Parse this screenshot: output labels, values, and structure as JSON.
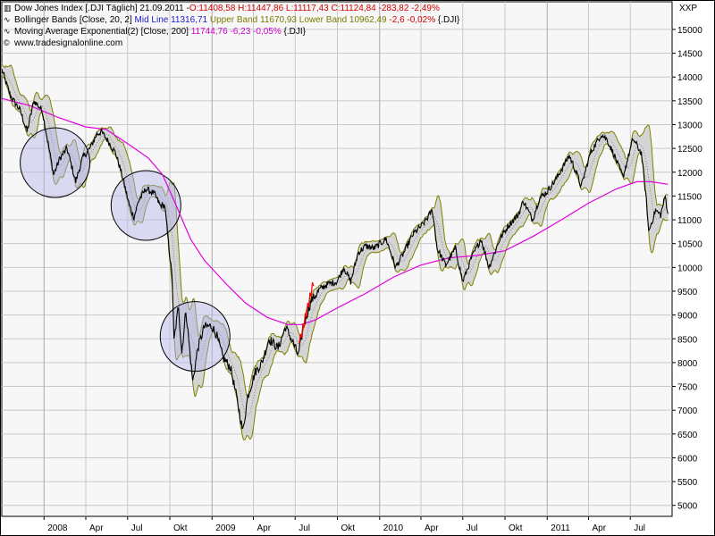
{
  "legend": {
    "line1": {
      "icon": "candlestick-icon",
      "label": "Dow Jones Index [.DJI  Täglich] 21.09.2011 -",
      "ohlc": "O:11408,58 H:11447,86 L:11117,43 C:11124,84 -283,82 -2,49%"
    },
    "line2": {
      "icon": "indicator-icon",
      "label": "Bollinger Bands [Close, 20, 2]",
      "mid": "Mid Line 11316,71",
      "upper": "Upper Band 11670,93",
      "lower": "Lower Band 10962,49",
      "change": "-2,6 -0,02%",
      "symbol": "{.DJI}"
    },
    "line3": {
      "icon": "indicator-icon",
      "label": "Moving Average Exponential(2) [Close, 200]",
      "value": "11744,76 -6,23 -0,05%",
      "symbol": "{.DJI}"
    },
    "line4": {
      "icon": "copyright-icon",
      "label": "www.tradesignalonline.com"
    }
  },
  "corner_label": "XXP",
  "colors": {
    "price": "#000000",
    "bands": "#808000",
    "band_fill": "#d4d4d4",
    "mid": "#555555",
    "ema": "#e000e0",
    "grid": "#c8c8c8",
    "circle_fill": "rgba(180,180,235,0.45)",
    "circle_stroke": "#000000",
    "red_segment": "#ff0000"
  },
  "chart_data": {
    "type": "line",
    "title": "Dow Jones Index [.DJI  Täglich] 21.09.2011",
    "y_axis": {
      "side": "right",
      "min": 5000,
      "max": 15000,
      "ticks": [
        "15000",
        "14500",
        "14000",
        "13500",
        "13000",
        "12500",
        "12000",
        "11500",
        "11000",
        "10500",
        "10000",
        "9500",
        "9000",
        "8500",
        "8000",
        "7500",
        "7000",
        "6500",
        "6000",
        "5500",
        "5000"
      ]
    },
    "x_axis": {
      "start": "2007-10-01",
      "end": "2011-09-30",
      "ticks": [
        {
          "label": "2008",
          "date": "2008-01-01",
          "major": true
        },
        {
          "label": "Apr",
          "date": "2008-04-01",
          "major": false
        },
        {
          "label": "Jul",
          "date": "2008-07-01",
          "major": false
        },
        {
          "label": "Okt",
          "date": "2008-10-01",
          "major": false
        },
        {
          "label": "2009",
          "date": "2009-01-01",
          "major": true
        },
        {
          "label": "Apr",
          "date": "2009-04-01",
          "major": false
        },
        {
          "label": "Jul",
          "date": "2009-07-01",
          "major": false
        },
        {
          "label": "Okt",
          "date": "2009-10-01",
          "major": false
        },
        {
          "label": "2010",
          "date": "2010-01-01",
          "major": true
        },
        {
          "label": "Apr",
          "date": "2010-04-01",
          "major": false
        },
        {
          "label": "Jul",
          "date": "2010-07-01",
          "major": false
        },
        {
          "label": "Okt",
          "date": "2010-10-01",
          "major": false
        },
        {
          "label": "2011",
          "date": "2011-01-01",
          "major": true
        },
        {
          "label": "Apr",
          "date": "2011-04-01",
          "major": false
        },
        {
          "label": "Jul",
          "date": "2011-07-01",
          "major": false
        }
      ]
    },
    "series": [
      {
        "name": "Dow Jones Index",
        "points": [
          [
            "2007-10-01",
            14150
          ],
          [
            "2007-10-20",
            13600
          ],
          [
            "2007-11-10",
            13300
          ],
          [
            "2007-11-25",
            12850
          ],
          [
            "2007-12-10",
            13500
          ],
          [
            "2007-12-28",
            13300
          ],
          [
            "2008-01-10",
            12600
          ],
          [
            "2008-01-22",
            11950
          ],
          [
            "2008-02-05",
            12300
          ],
          [
            "2008-02-20",
            12500
          ],
          [
            "2008-03-10",
            11800
          ],
          [
            "2008-03-25",
            12300
          ],
          [
            "2008-04-10",
            12500
          ],
          [
            "2008-04-25",
            12800
          ],
          [
            "2008-05-05",
            12850
          ],
          [
            "2008-05-20",
            12650
          ],
          [
            "2008-06-05",
            12400
          ],
          [
            "2008-06-20",
            11900
          ],
          [
            "2008-07-05",
            11300
          ],
          [
            "2008-07-15",
            11050
          ],
          [
            "2008-07-25",
            11400
          ],
          [
            "2008-08-10",
            11650
          ],
          [
            "2008-08-28",
            11550
          ],
          [
            "2008-09-10",
            11300
          ],
          [
            "2008-09-20",
            11300
          ],
          [
            "2008-09-29",
            10400
          ],
          [
            "2008-10-06",
            9800
          ],
          [
            "2008-10-10",
            8450
          ],
          [
            "2008-10-20",
            9200
          ],
          [
            "2008-10-27",
            8200
          ],
          [
            "2008-11-05",
            9100
          ],
          [
            "2008-11-20",
            7600
          ],
          [
            "2008-12-01",
            8300
          ],
          [
            "2008-12-15",
            8750
          ],
          [
            "2008-12-31",
            8770
          ],
          [
            "2009-01-10",
            8600
          ],
          [
            "2009-01-25",
            8100
          ],
          [
            "2009-02-10",
            7900
          ],
          [
            "2009-02-25",
            7200
          ],
          [
            "2009-03-09",
            6550
          ],
          [
            "2009-03-20",
            7300
          ],
          [
            "2009-04-05",
            7800
          ],
          [
            "2009-04-20",
            8000
          ],
          [
            "2009-05-05",
            8500
          ],
          [
            "2009-05-25",
            8300
          ],
          [
            "2009-06-10",
            8750
          ],
          [
            "2009-06-25",
            8450
          ],
          [
            "2009-07-08",
            8150
          ],
          [
            "2009-07-20",
            8800
          ],
          [
            "2009-08-05",
            9300
          ],
          [
            "2009-08-25",
            9550
          ],
          [
            "2009-09-10",
            9650
          ],
          [
            "2009-09-30",
            9700
          ],
          [
            "2009-10-15",
            10000
          ],
          [
            "2009-10-30",
            9700
          ],
          [
            "2009-11-15",
            10300
          ],
          [
            "2009-12-01",
            10450
          ],
          [
            "2009-12-20",
            10400
          ],
          [
            "2010-01-15",
            10600
          ],
          [
            "2010-02-05",
            10000
          ],
          [
            "2010-02-25",
            10350
          ],
          [
            "2010-03-15",
            10700
          ],
          [
            "2010-04-05",
            10900
          ],
          [
            "2010-04-26",
            11200
          ],
          [
            "2010-05-06",
            10400
          ],
          [
            "2010-05-25",
            10050
          ],
          [
            "2010-06-15",
            10400
          ],
          [
            "2010-07-01",
            9700
          ],
          [
            "2010-07-20",
            10200
          ],
          [
            "2010-08-10",
            10600
          ],
          [
            "2010-08-27",
            10000
          ],
          [
            "2010-09-20",
            10600
          ],
          [
            "2010-10-10",
            10900
          ],
          [
            "2010-10-30",
            11100
          ],
          [
            "2010-11-10",
            11400
          ],
          [
            "2010-11-30",
            11000
          ],
          [
            "2010-12-15",
            11450
          ],
          [
            "2010-12-31",
            11580
          ],
          [
            "2011-01-20",
            11850
          ],
          [
            "2011-02-18",
            12350
          ],
          [
            "2011-03-05",
            12000
          ],
          [
            "2011-03-16",
            11700
          ],
          [
            "2011-04-05",
            12400
          ],
          [
            "2011-04-29",
            12800
          ],
          [
            "2011-05-10",
            12700
          ],
          [
            "2011-05-25",
            12400
          ],
          [
            "2011-06-15",
            11900
          ],
          [
            "2011-07-07",
            12700
          ],
          [
            "2011-07-25",
            12400
          ],
          [
            "2011-08-05",
            11400
          ],
          [
            "2011-08-10",
            10750
          ],
          [
            "2011-08-25",
            11200
          ],
          [
            "2011-09-05",
            11100
          ],
          [
            "2011-09-15",
            11500
          ],
          [
            "2011-09-21",
            11125
          ]
        ]
      },
      {
        "name": "Moving Average Exponential(2) [Close, 200]",
        "points": [
          [
            "2007-10-01",
            13550
          ],
          [
            "2007-12-01",
            13400
          ],
          [
            "2008-02-01",
            13150
          ],
          [
            "2008-04-01",
            12950
          ],
          [
            "2008-05-15",
            12900
          ],
          [
            "2008-07-01",
            12600
          ],
          [
            "2008-08-15",
            12300
          ],
          [
            "2008-09-15",
            11950
          ],
          [
            "2008-10-15",
            11300
          ],
          [
            "2008-11-15",
            10600
          ],
          [
            "2008-12-15",
            10150
          ],
          [
            "2009-02-01",
            9650
          ],
          [
            "2009-03-15",
            9250
          ],
          [
            "2009-05-01",
            8950
          ],
          [
            "2009-06-15",
            8800
          ],
          [
            "2009-07-15",
            8800
          ],
          [
            "2009-08-15",
            8900
          ],
          [
            "2009-10-01",
            9150
          ],
          [
            "2009-12-01",
            9450
          ],
          [
            "2010-02-01",
            9800
          ],
          [
            "2010-04-01",
            10050
          ],
          [
            "2010-06-01",
            10200
          ],
          [
            "2010-08-01",
            10250
          ],
          [
            "2010-10-01",
            10350
          ],
          [
            "2010-12-01",
            10650
          ],
          [
            "2011-02-01",
            11000
          ],
          [
            "2011-04-01",
            11350
          ],
          [
            "2011-06-01",
            11650
          ],
          [
            "2011-07-15",
            11800
          ],
          [
            "2011-08-15",
            11800
          ],
          [
            "2011-09-21",
            11745
          ]
        ]
      }
    ],
    "bollinger": {
      "label": "Bollinger Bands [Close, 20, 2]",
      "mid_line": 11316.71,
      "upper_band": 11670.93,
      "lower_band": 10962.49
    },
    "annotations": [
      {
        "type": "circle",
        "date": "2008-01-25",
        "value": 12200,
        "note": "circle"
      },
      {
        "type": "circle",
        "date": "2008-08-10",
        "value": 11300,
        "note": "circle"
      },
      {
        "type": "circle",
        "date": "2008-11-25",
        "value": 8550,
        "note": "circle"
      },
      {
        "type": "highlight-segment",
        "from": [
          "2009-07-10",
          8400
        ],
        "to": [
          "2009-08-10",
          9700
        ]
      }
    ],
    "grid": true,
    "legend_position": "top-left"
  }
}
